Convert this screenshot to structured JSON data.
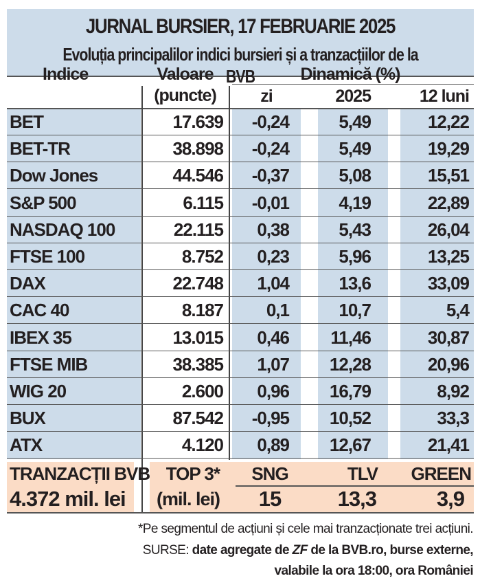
{
  "title": "JURNAL BURSIER, 17 FEBRUARIE 2025",
  "subtitle": "Evoluția principalilor indici bursieri și a tranzacțiilor de la BVB",
  "headers": {
    "index": "Indice",
    "value": "Valoare",
    "value_unit": "(puncte)",
    "dynamics": "Dinamică (%)",
    "day": "zi",
    "ytd": "2025",
    "m12": "12 luni"
  },
  "rows": [
    {
      "name": "BET",
      "value": "17.639",
      "day": "-0,24",
      "ytd": "5,49",
      "m12": "12,22"
    },
    {
      "name": "BET-TR",
      "value": "38.898",
      "day": "-0,24",
      "ytd": "5,49",
      "m12": "19,29"
    },
    {
      "name": "Dow Jones",
      "value": "44.546",
      "day": "-0,37",
      "ytd": "5,08",
      "m12": "15,51"
    },
    {
      "name": "S&P 500",
      "value": "6.115",
      "day": "-0,01",
      "ytd": "4,19",
      "m12": "22,89"
    },
    {
      "name": "NASDAQ 100",
      "value": "22.115",
      "day": "0,38",
      "ytd": "5,43",
      "m12": "26,04"
    },
    {
      "name": "FTSE 100",
      "value": "8.752",
      "day": "0,23",
      "ytd": "5,96",
      "m12": "13,25"
    },
    {
      "name": "DAX",
      "value": "22.748",
      "day": "1,04",
      "ytd": "13,6",
      "m12": "33,09"
    },
    {
      "name": "CAC 40",
      "value": "8.187",
      "day": "0,1",
      "ytd": "10,7",
      "m12": "5,4"
    },
    {
      "name": "IBEX 35",
      "value": "13.015",
      "day": "0,46",
      "ytd": "11,46",
      "m12": "30,87"
    },
    {
      "name": "FTSE MIB",
      "value": "38.385",
      "day": "1,07",
      "ytd": "12,28",
      "m12": "20,96"
    },
    {
      "name": "WIG 20",
      "value": "2.600",
      "day": "0,96",
      "ytd": "16,79",
      "m12": "8,92"
    },
    {
      "name": "BUX",
      "value": "87.542",
      "day": "-0,95",
      "ytd": "10,52",
      "m12": "33,3"
    },
    {
      "name": "ATX",
      "value": "4.120",
      "day": "0,89",
      "ytd": "12,67",
      "m12": "21,41"
    }
  ],
  "bvb": {
    "label": "TRANZACȚII BVB",
    "total": "4.372 mil. lei",
    "top_label": "TOP 3*",
    "top_unit": "(mil. lei)",
    "top": [
      {
        "name": "SNG",
        "value": "15"
      },
      {
        "name": "TLV",
        "value": "13,3"
      },
      {
        "name": "GREEN",
        "value": "3,9"
      }
    ]
  },
  "footnote": "*Pe segmentul de acțiuni și cele mai tranzacționate trei acțiuni.",
  "sources_label": "SURSE:",
  "sources_a": "date agregate de ",
  "sources_zf": "ZF",
  "sources_b": " de la BVB.ro, burse externe,",
  "sources_c": "valabile la ora 18:00, ora României"
}
